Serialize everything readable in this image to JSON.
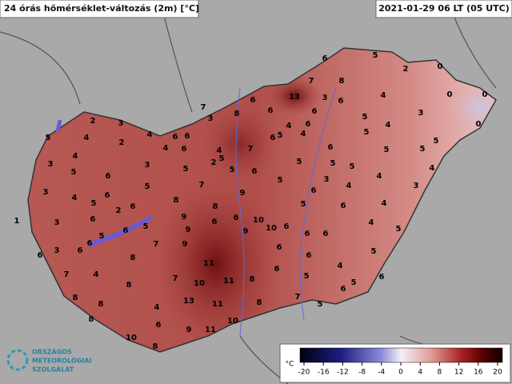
{
  "header": {
    "title": "24 órás hőmérséklet-változás (2m) [°C]",
    "timestamp": "2021-01-29 06 LT (05 UTC)"
  },
  "stations": [
    6,
    5,
    0,
    2,
    7,
    8,
    13,
    3,
    6,
    4,
    0,
    0,
    0,
    7,
    6,
    3,
    8,
    6,
    2,
    3,
    5,
    4,
    2,
    4,
    6,
    6,
    4,
    6,
    4,
    7,
    6,
    5,
    4,
    6,
    6,
    5,
    5,
    4,
    3,
    5,
    3,
    4,
    5,
    6,
    3,
    5,
    2,
    5,
    5,
    6,
    4,
    5,
    6,
    5,
    5,
    5,
    5,
    4,
    3,
    4,
    6,
    5,
    7,
    9,
    5,
    6,
    3,
    4,
    4,
    3,
    1,
    3,
    5,
    6,
    2,
    6,
    8,
    8,
    6,
    5,
    6,
    4,
    5,
    6,
    3,
    6,
    6,
    5,
    6,
    5,
    9,
    9,
    6,
    10,
    9,
    10,
    6,
    6,
    6,
    4,
    6,
    5,
    7,
    4,
    8,
    7,
    9,
    6,
    11,
    11,
    8,
    6,
    4,
    6,
    5,
    7,
    10,
    8,
    8,
    13,
    11,
    8,
    7,
    6,
    5,
    5,
    4,
    8,
    8,
    6,
    9,
    11,
    10,
    10,
    8
  ],
  "legend": {
    "unit": "°C",
    "ticks": [
      -20,
      -16,
      -12,
      -8,
      -4,
      0,
      4,
      8,
      12,
      16,
      20
    ]
  },
  "logo": {
    "line1": "ORSZÁGOS",
    "line2": "METEOROLÓGIAI",
    "line3": "SZOLGÁLAT"
  }
}
